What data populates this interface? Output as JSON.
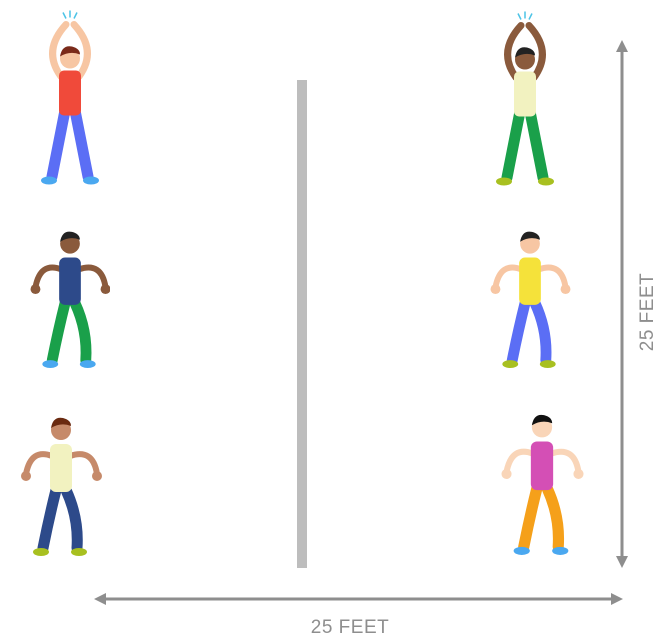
{
  "dimensions": {
    "vertical": "25 FEET",
    "horizontal": "25 FEET"
  }
}
